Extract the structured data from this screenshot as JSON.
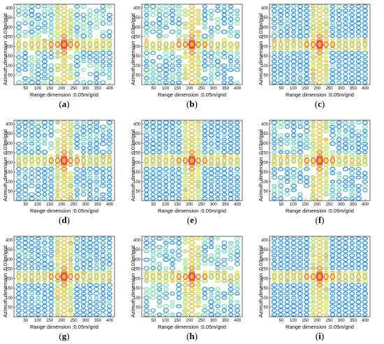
{
  "figure": {
    "panels": [
      {
        "id": "a",
        "caption": "(a)"
      },
      {
        "id": "b",
        "caption": "(b)"
      },
      {
        "id": "c",
        "caption": "(c)"
      },
      {
        "id": "d",
        "caption": "(d)"
      },
      {
        "id": "e",
        "caption": "(e)"
      },
      {
        "id": "f",
        "caption": "(f)"
      },
      {
        "id": "g",
        "caption": "(g)"
      },
      {
        "id": "h",
        "caption": "(h)"
      },
      {
        "id": "i",
        "caption": "(i)"
      }
    ]
  },
  "chart_data": {
    "type": "contour",
    "xlabel": "Range dimension :0.05m/grid",
    "ylabel": "Azimuth dimension :0.03m/grid",
    "x_ticks": [
      50,
      100,
      150,
      200,
      250,
      300,
      350,
      400
    ],
    "y_ticks": [
      50,
      100,
      150,
      200,
      250,
      300,
      350,
      400
    ],
    "xlim": [
      1,
      420
    ],
    "ylim": [
      1,
      420
    ],
    "peak": {
      "x": 210,
      "y": 210
    },
    "colormap": [
      "#1a6fd6",
      "#26b5e6",
      "#7fdcaa",
      "#d8e85a",
      "#f0a030",
      "#e8402a"
    ],
    "panels_count": 9
  }
}
